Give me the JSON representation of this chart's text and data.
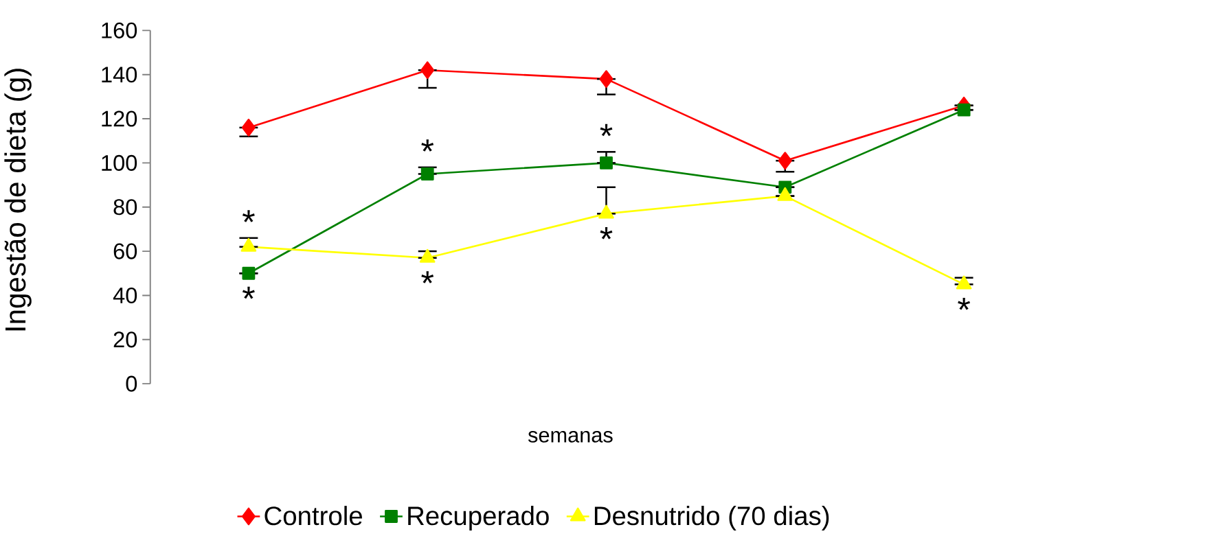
{
  "chart_data": {
    "type": "line",
    "xlabel": "semanas",
    "ylabel": "Ingestão de dieta (g)",
    "categories": [
      null,
      null,
      null,
      null,
      null
    ],
    "ylim": [
      0,
      160
    ],
    "yticks": [
      0,
      20,
      40,
      60,
      80,
      100,
      120,
      140,
      160
    ],
    "legend": "bottom",
    "tick_labels": "y",
    "series": [
      {
        "name": "Controle",
        "color": "#ff0000",
        "marker": "diamond",
        "values": [
          116,
          142,
          138,
          101,
          126
        ],
        "errors": [
          [
            112,
            116
          ],
          [
            134,
            142
          ],
          [
            131,
            138
          ],
          [
            96,
            101
          ],
          null
        ]
      },
      {
        "name": "Recuperado",
        "color": "#008000",
        "marker": "square",
        "values": [
          50,
          95,
          100,
          89,
          124
        ],
        "errors": [
          null,
          [
            95,
            98
          ],
          [
            100,
            105
          ],
          null,
          null
        ],
        "value_labels": [
          "*",
          "*",
          "*",
          null,
          null
        ]
      },
      {
        "name": "Desnutrido (70 dias)",
        "color": "#ffff00",
        "marker": "triangle",
        "values": [
          62,
          57,
          77,
          85,
          45
        ],
        "errors": [
          [
            62,
            66
          ],
          [
            57,
            60
          ],
          [
            77,
            89
          ],
          null,
          [
            45,
            48
          ]
        ],
        "value_labels": [
          "*",
          "*",
          "*",
          null,
          "*"
        ]
      }
    ]
  }
}
